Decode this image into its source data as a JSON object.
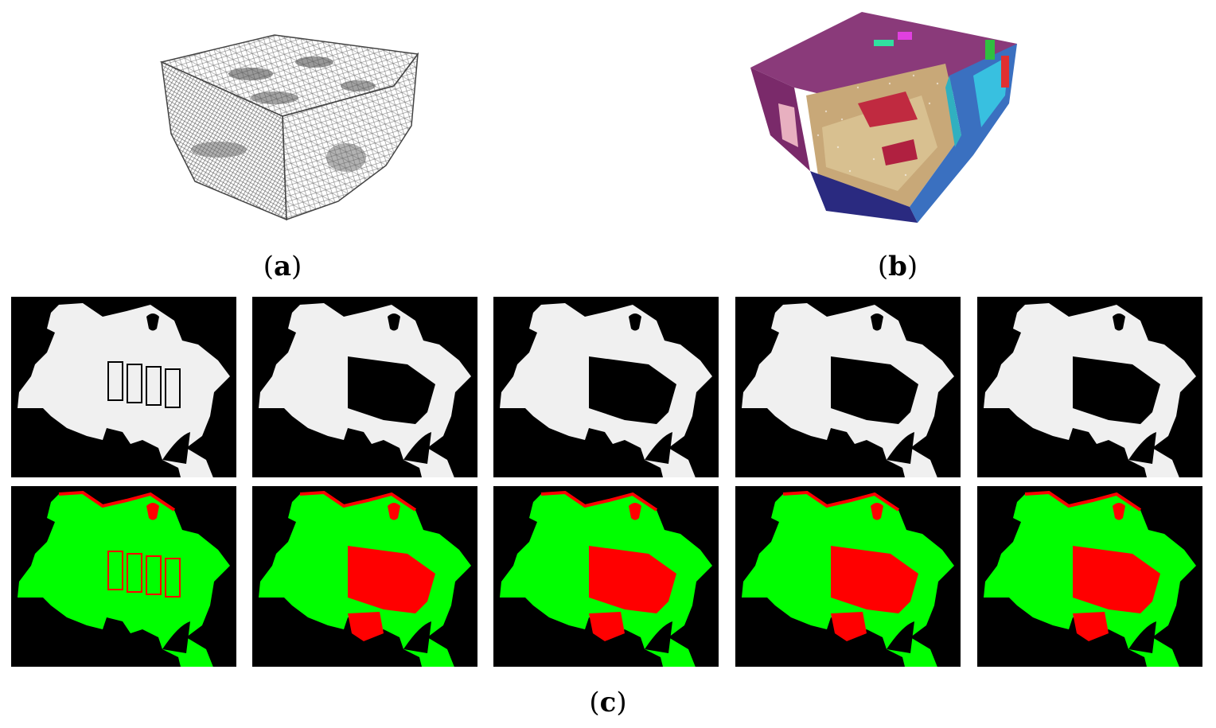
{
  "figure": {
    "panel_a": {
      "label": "a"
    },
    "panel_b": {
      "label": "b"
    },
    "panel_c": {
      "label": "c",
      "rows": [
        {
          "kind": "mask",
          "count": 5
        },
        {
          "kind": "overlay",
          "count": 5
        }
      ]
    }
  },
  "colors": {
    "mask_fill": "#f0f0f0",
    "background": "#000000",
    "overlay_match": "#00ff00",
    "overlay_miss": "#ff0000"
  }
}
